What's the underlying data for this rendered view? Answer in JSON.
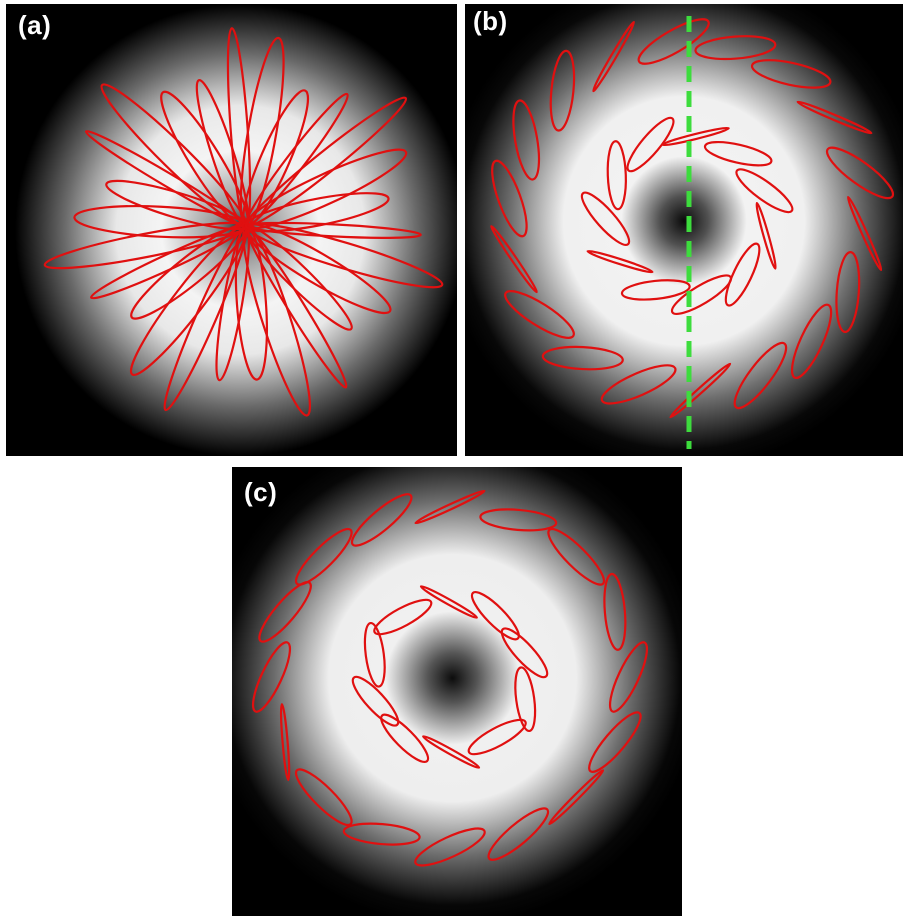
{
  "figure": {
    "panels": [
      {
        "id": "a",
        "label": "(a)",
        "beam": "gaussian",
        "ellipse_arrangement": "radial-star",
        "polarization_color": "#e01010",
        "divider_line": false
      },
      {
        "id": "b",
        "label": "(b)",
        "beam": "donut",
        "ellipse_arrangement": "radial-outward",
        "polarization_color": "#e01010",
        "divider_line": true,
        "divider_color": "#3ddc3d",
        "divider_style": "dashed-vertical"
      },
      {
        "id": "c",
        "label": "(c)",
        "beam": "donut",
        "ellipse_arrangement": "azimuthal-mixed",
        "polarization_color": "#e01010",
        "divider_line": false
      }
    ]
  }
}
